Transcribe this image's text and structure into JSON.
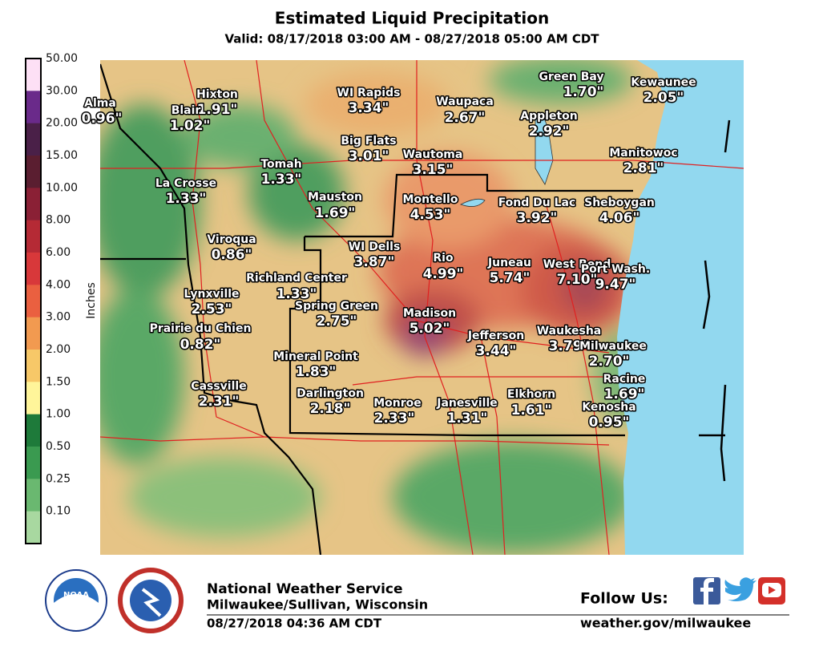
{
  "header": {
    "title": "Estimated Liquid Precipitation",
    "subtitle": "Valid: 08/17/2018 03:00 AM - 08/27/2018 05:00 AM CDT"
  },
  "legend": {
    "unit": "Inches",
    "labels": [
      "50.00",
      "30.00",
      "20.00",
      "15.00",
      "10.00",
      "8.00",
      "6.00",
      "4.00",
      "3.00",
      "2.00",
      "1.50",
      "1.00",
      "0.50",
      "0.25",
      "0.10"
    ]
  },
  "cities": [
    {
      "name": "Alma",
      "value": "0.96\""
    },
    {
      "name": "Hixton",
      "value": "1.91\""
    },
    {
      "name": "Blair",
      "value": "1.02\""
    },
    {
      "name": "WI Rapids",
      "value": "3.34\""
    },
    {
      "name": "Waupaca",
      "value": "2.67\""
    },
    {
      "name": "Green Bay",
      "value": "1.70\""
    },
    {
      "name": "Kewaunee",
      "value": "2.05\""
    },
    {
      "name": "Appleton",
      "value": "2.92\""
    },
    {
      "name": "Big Flats",
      "value": "3.01\""
    },
    {
      "name": "Wautoma",
      "value": "3.15\""
    },
    {
      "name": "Manitowoc",
      "value": "2.81\""
    },
    {
      "name": "Tomah",
      "value": "1.33\""
    },
    {
      "name": "La Crosse",
      "value": "1.33\""
    },
    {
      "name": "Mauston",
      "value": "1.69\""
    },
    {
      "name": "Montello",
      "value": "4.53\""
    },
    {
      "name": "Fond Du Lac",
      "value": "3.92\""
    },
    {
      "name": "Sheboygan",
      "value": "4.06\""
    },
    {
      "name": "Viroqua",
      "value": "0.86\""
    },
    {
      "name": "WI Dells",
      "value": "3.87\""
    },
    {
      "name": "Rio",
      "value": "4.99\""
    },
    {
      "name": "Juneau",
      "value": "5.74\""
    },
    {
      "name": "West Bend",
      "value": "7.10\""
    },
    {
      "name": "Port Wash.",
      "value": "9.47\""
    },
    {
      "name": "Richland Center",
      "value": "1.33\""
    },
    {
      "name": "Lynxville",
      "value": "2.53\""
    },
    {
      "name": "Spring Green",
      "value": "2.75\""
    },
    {
      "name": "Madison",
      "value": "5.02\""
    },
    {
      "name": "Prairie du Chien",
      "value": "0.82\""
    },
    {
      "name": "Jefferson",
      "value": "3.44\""
    },
    {
      "name": "Waukesha",
      "value": "3.79\""
    },
    {
      "name": "Milwaukee",
      "value": "2.70\""
    },
    {
      "name": "Mineral Point",
      "value": "1.83\""
    },
    {
      "name": "Racine",
      "value": "1.69\""
    },
    {
      "name": "Cassville",
      "value": "2.31\""
    },
    {
      "name": "Darlington",
      "value": "2.18\""
    },
    {
      "name": "Monroe",
      "value": "2.33\""
    },
    {
      "name": "Janesville",
      "value": "1.31\""
    },
    {
      "name": "Elkhorn",
      "value": "1.61\""
    },
    {
      "name": "Kenosha",
      "value": "0.95\""
    }
  ],
  "footer": {
    "agency": "National Weather Service",
    "office": "Milwaukee/Sullivan, Wisconsin",
    "issued": "08/27/2018 04:36 AM CDT",
    "follow": "Follow Us:",
    "website": "weather.gov/milwaukee",
    "noaa": "NOAA"
  }
}
